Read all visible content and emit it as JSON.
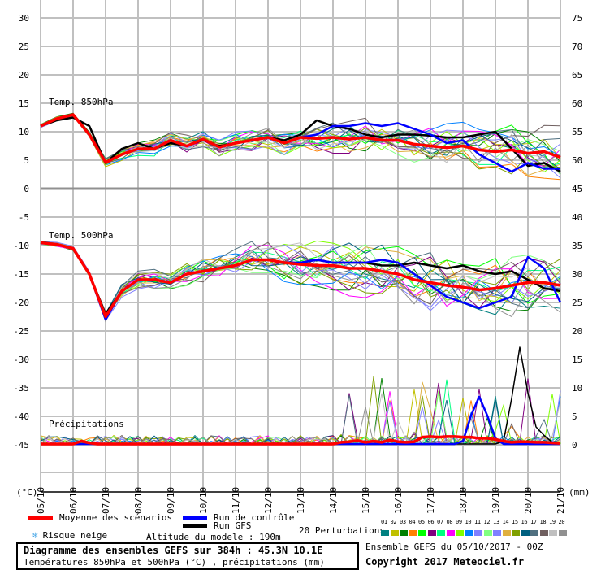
{
  "chart_data": {
    "type": "line",
    "title": "Diagramme des ensembles GEFS sur 384h : 45.3N 10.1E",
    "subtitle": "Températures 850hPa et 500hPa (°C) , précipitations (mm)",
    "left_axis_label": "(°C)",
    "right_axis_label": "(mm)",
    "left_ticks": [
      30,
      25,
      20,
      15,
      10,
      5,
      0,
      -5,
      -10,
      -15,
      -20,
      -25,
      -30,
      -35,
      -40,
      -45
    ],
    "right_ticks": [
      75,
      70,
      65,
      60,
      55,
      50,
      45,
      40,
      35,
      30,
      25,
      20,
      15,
      10,
      5,
      0
    ],
    "x_ticks": [
      "05/10",
      "06/10",
      "07/10",
      "08/10",
      "09/10",
      "10/10",
      "11/10",
      "12/10",
      "13/10",
      "14/10",
      "15/10",
      "16/10",
      "17/10",
      "18/10",
      "19/10",
      "20/10",
      "21/10"
    ],
    "panel_labels": {
      "t850": "Temp. 850hPa",
      "t500": "Temp. 500hPa",
      "precip": "Précipitations"
    },
    "x_unit": "days from 05/10 00Z",
    "temp_step_days": 0.5,
    "precip_step_days": 0.25,
    "series": {
      "t850": {
        "mean": [
          11,
          12.3,
          13,
          9.5,
          4.6,
          6,
          7,
          7,
          8.5,
          7.5,
          8.7,
          7.3,
          8,
          8.5,
          9,
          8,
          9,
          8.8,
          9,
          8.7,
          9,
          8.5,
          8.5,
          7.8,
          7.5,
          7.2,
          7.5,
          6.8,
          6.5,
          6.8,
          6.2,
          6.5,
          5.5
        ],
        "control": [
          11,
          12.3,
          13,
          9.5,
          4.6,
          6,
          7,
          7,
          8.5,
          7.5,
          8.7,
          7.3,
          8,
          8.5,
          9,
          8,
          9,
          9.5,
          11,
          11,
          11.5,
          11,
          11.5,
          10.5,
          9.5,
          8,
          8.5,
          6,
          4.5,
          3,
          4.5,
          3.5,
          3.5
        ],
        "gfs": [
          11,
          12,
          12.5,
          11,
          4.5,
          7,
          8,
          7,
          8,
          7.5,
          8.5,
          7.5,
          8,
          8.5,
          9,
          8.5,
          9.5,
          12,
          11,
          10.5,
          9.5,
          9,
          9.5,
          9.5,
          9.3,
          9,
          9,
          9.5,
          10,
          7,
          4,
          4.5,
          3
        ]
      },
      "t500": {
        "mean": [
          -9.5,
          -9.8,
          -10.5,
          -15,
          -22.5,
          -18,
          -16,
          -16,
          -16.5,
          -15,
          -14.5,
          -14,
          -13.5,
          -12.5,
          -12.5,
          -13,
          -13.3,
          -13.5,
          -13.5,
          -14,
          -14,
          -14.5,
          -15,
          -16,
          -16.5,
          -17,
          -17.3,
          -17.8,
          -17.5,
          -17,
          -16.5,
          -16.5,
          -17
        ],
        "control": [
          -9.5,
          -9.8,
          -10.5,
          -15,
          -23,
          -18,
          -16,
          -16,
          -16.5,
          -15,
          -14.5,
          -14,
          -13.5,
          -12.5,
          -12.5,
          -13,
          -13,
          -12.5,
          -13,
          -13,
          -13,
          -12.5,
          -13,
          -15,
          -17,
          -19,
          -20,
          -21,
          -20,
          -19,
          -12,
          -14,
          -20
        ],
        "gfs": [
          -9.5,
          -9.8,
          -10.5,
          -15,
          -22,
          -18,
          -16,
          -16,
          -16.5,
          -15,
          -14.5,
          -14,
          -13.5,
          -12.5,
          -12.5,
          -13,
          -13,
          -12.5,
          -13,
          -13,
          -13,
          -13.5,
          -13.5,
          -13,
          -13.5,
          -14,
          -13.5,
          -14.5,
          -15,
          -14.5,
          -16,
          -17.5,
          -18
        ]
      },
      "precip": {
        "mean": [
          0,
          0,
          0,
          0,
          0,
          0.5,
          0.2,
          0,
          0,
          0,
          0,
          0,
          0,
          0,
          0,
          0,
          0,
          0,
          0,
          0,
          0,
          0,
          0,
          0,
          0,
          0,
          0,
          0,
          0,
          0,
          0,
          0,
          0,
          0,
          0,
          0,
          0,
          0.3,
          0.4,
          0.6,
          0.3,
          0.5,
          0.3,
          0.7,
          0.4,
          0.3,
          0.4,
          1.2,
          1.3,
          1.2,
          1.3,
          1.3,
          1.2,
          1.2,
          1.0,
          1.0,
          0.8,
          0.5,
          0.3,
          0.4,
          0.4,
          0.3,
          0.3,
          0.2,
          0.1
        ],
        "control": [
          0,
          0,
          0,
          0,
          0,
          0,
          0,
          0,
          0,
          0,
          0,
          0,
          0,
          0,
          0,
          0,
          0,
          0,
          0,
          0,
          0,
          0,
          0,
          0,
          0,
          0,
          0,
          0,
          0,
          0,
          0,
          0,
          0,
          0,
          0,
          0,
          0,
          0,
          0,
          0,
          0,
          0,
          0,
          0,
          0,
          0,
          0,
          0,
          0,
          0,
          0,
          0,
          0.5,
          5,
          8.3,
          5,
          1,
          0,
          0,
          0,
          0,
          0,
          0,
          0,
          0
        ],
        "gfs": [
          0,
          0,
          0,
          0,
          0,
          0,
          0,
          0,
          0,
          0,
          0,
          0,
          0,
          0,
          0,
          0,
          0,
          0,
          0,
          0,
          0,
          0,
          0,
          0,
          0,
          0,
          0,
          0,
          0,
          0,
          0,
          0,
          0,
          0,
          0,
          0,
          0,
          0,
          0,
          0,
          0,
          0,
          0,
          0,
          0,
          0,
          0,
          0,
          0,
          0,
          0,
          0,
          0,
          0,
          0,
          0,
          0,
          0.5,
          8,
          17,
          9,
          3,
          1.5,
          0.3,
          0
        ]
      }
    },
    "legend": {
      "mean": "Moyenne des scénarios",
      "control": "Run de contrôle",
      "gfs": "Run GFS",
      "snow": "Risque neige",
      "altitude": "Altitude du modele : 190m",
      "perturbations": "20 Perturbations",
      "perturbation_ids": [
        "01",
        "02",
        "03",
        "04",
        "05",
        "06",
        "07",
        "08",
        "09",
        "10",
        "11",
        "12",
        "13",
        "14",
        "15",
        "16",
        "17",
        "18",
        "19",
        "20"
      ]
    },
    "colors": {
      "mean": "#ff0000",
      "control": "#0000ff",
      "gfs": "#000000",
      "perturbations": [
        "#008080",
        "#c0c000",
        "#008000",
        "#ff8000",
        "#00ff00",
        "#800080",
        "#00ff80",
        "#ff00ff",
        "#80ff00",
        "#0080ff",
        "#8080ff",
        "#80ff80",
        "#8080ff",
        "#e0b040",
        "#80a000",
        "#006080",
        "#507080",
        "#706060",
        "#c0c0c0",
        "#909090"
      ]
    },
    "run_info": "Ensemble GEFS du 05/10/2017 - 00Z",
    "copyright": "Copyright 2017 Meteociel.fr"
  }
}
